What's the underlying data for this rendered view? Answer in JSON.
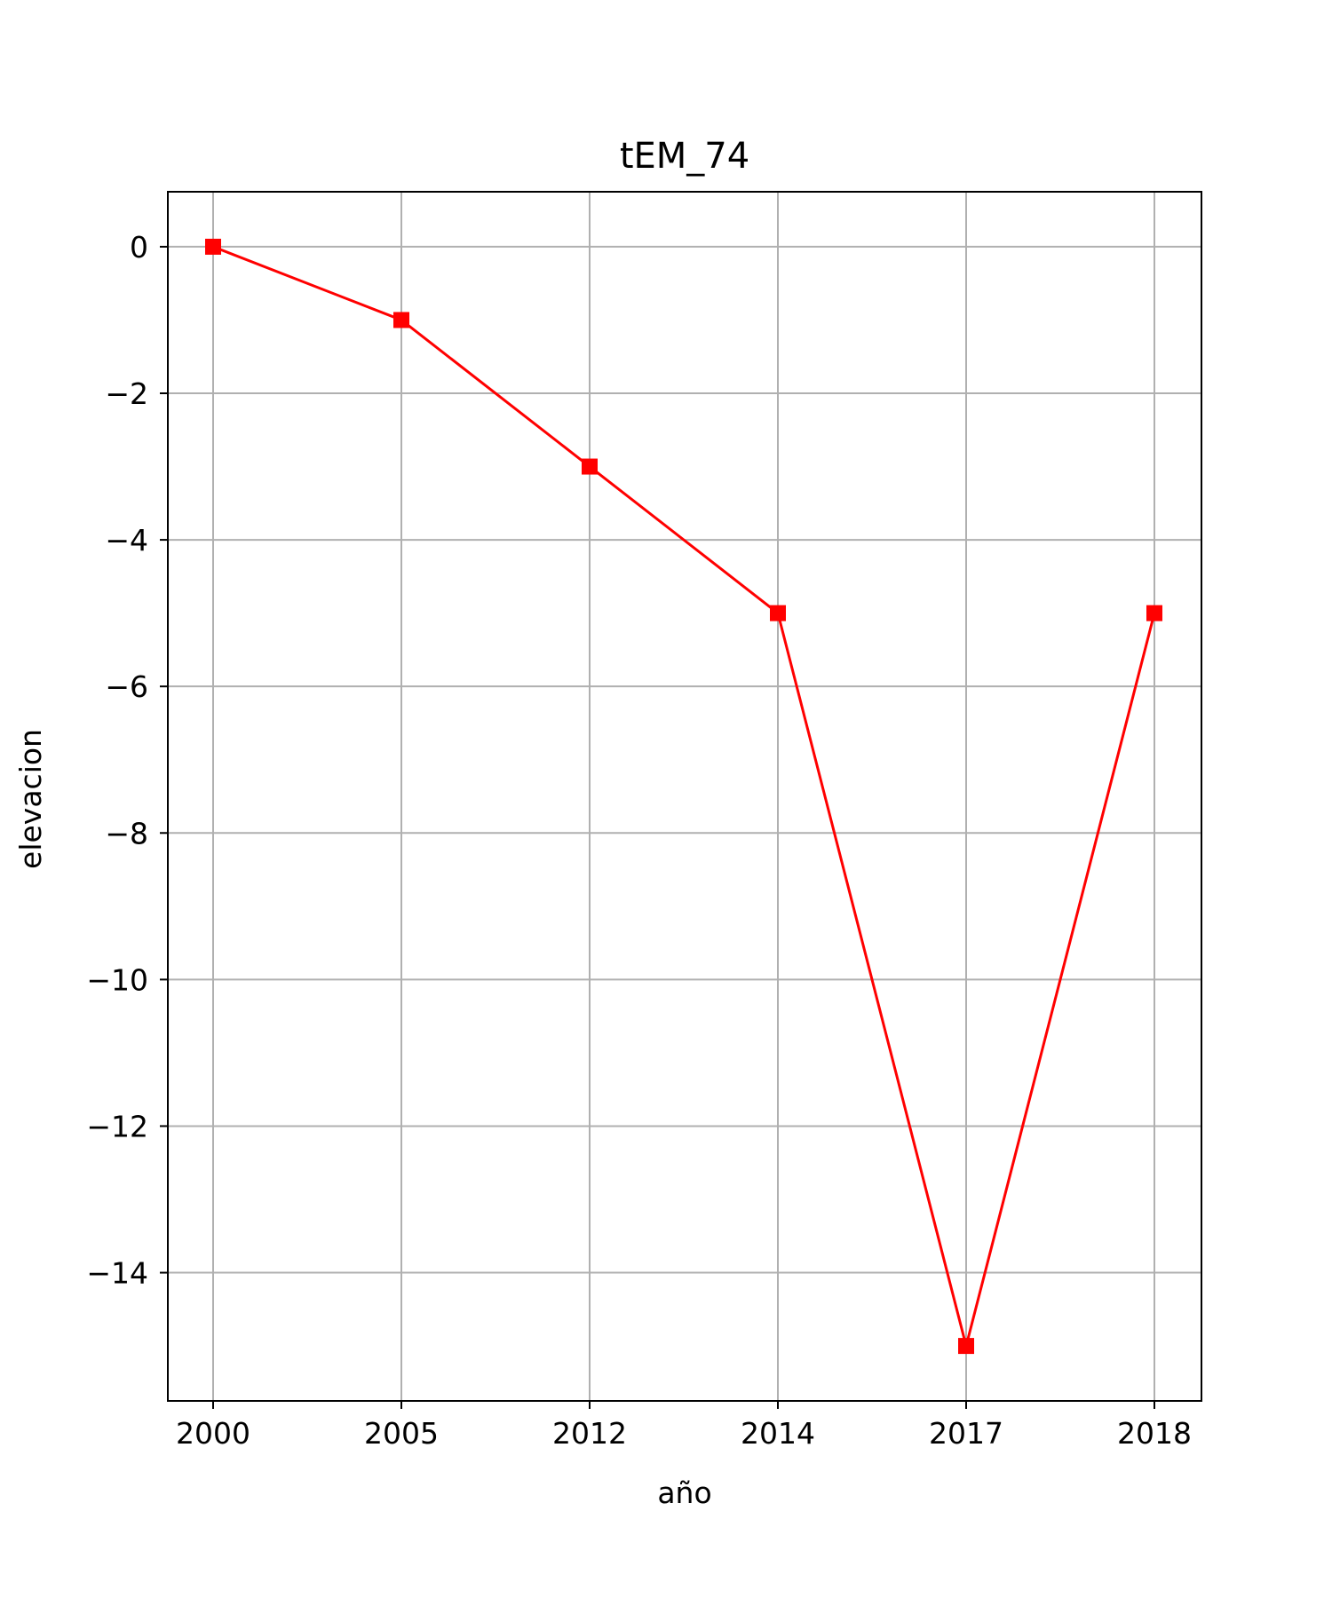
{
  "chart_data": {
    "type": "line",
    "title": "tEM_74",
    "xlabel": "año",
    "ylabel": "elevacion",
    "categories": [
      "2000",
      "2005",
      "2012",
      "2014",
      "2017",
      "2018"
    ],
    "series": [
      {
        "values": [
          0,
          -1,
          -3,
          -5,
          -15,
          -5
        ],
        "color": "#ff0000",
        "marker": "square"
      }
    ],
    "yticks": [
      0,
      -2,
      -4,
      -6,
      -8,
      -10,
      -12,
      -14
    ],
    "ylim": [
      -15.75,
      0.75
    ],
    "grid": true
  }
}
